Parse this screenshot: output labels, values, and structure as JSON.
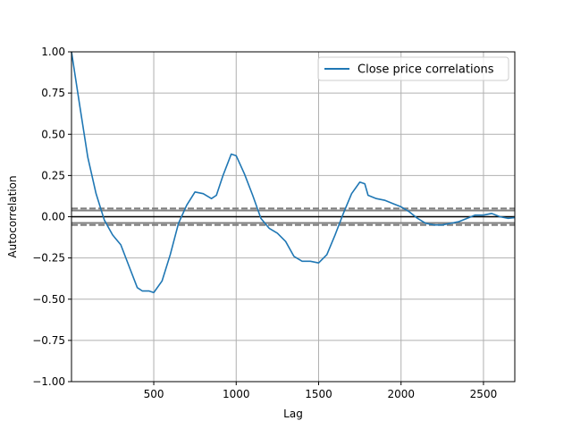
{
  "chart_data": {
    "type": "line",
    "title": "",
    "xlabel": "Lag",
    "ylabel": "Autocorrelation",
    "xlim": [
      1,
      2690
    ],
    "ylim": [
      -1.0,
      1.0
    ],
    "x_ticks": [
      500,
      1000,
      1500,
      2000,
      2500
    ],
    "x_tick_labels": [
      "500",
      "1000",
      "1500",
      "2000",
      "2500"
    ],
    "y_ticks": [
      -1.0,
      -0.75,
      -0.5,
      -0.25,
      0.0,
      0.25,
      0.5,
      0.75,
      1.0
    ],
    "y_tick_labels": [
      "−1.00",
      "−0.75",
      "−0.50",
      "−0.25",
      "0.00",
      "0.25",
      "0.50",
      "0.75",
      "1.00"
    ],
    "grid": true,
    "legend": {
      "position": "top-right",
      "entries": [
        "Close price correlations"
      ]
    },
    "reference_lines": {
      "zero": 0.0,
      "solid_band": [
        0.038,
        -0.038
      ],
      "dashed_band": [
        0.05,
        -0.05
      ]
    },
    "colors": {
      "series": "#1f77b4",
      "reference": "#808080",
      "zero": "#000000",
      "grid": "#b0b0b0"
    },
    "series": [
      {
        "name": "Close price correlations",
        "x": [
          1,
          50,
          100,
          150,
          200,
          250,
          300,
          350,
          400,
          430,
          470,
          500,
          550,
          600,
          650,
          700,
          750,
          800,
          850,
          880,
          920,
          970,
          1000,
          1050,
          1100,
          1150,
          1200,
          1250,
          1300,
          1350,
          1400,
          1450,
          1500,
          1550,
          1600,
          1650,
          1700,
          1750,
          1780,
          1800,
          1850,
          1900,
          1950,
          2000,
          2050,
          2100,
          2150,
          2200,
          2250,
          2300,
          2350,
          2400,
          2450,
          2500,
          2550,
          2600,
          2650,
          2690
        ],
        "values": [
          1.0,
          0.68,
          0.36,
          0.14,
          -0.02,
          -0.11,
          -0.17,
          -0.3,
          -0.43,
          -0.45,
          -0.45,
          -0.46,
          -0.39,
          -0.23,
          -0.04,
          0.07,
          0.15,
          0.14,
          0.11,
          0.13,
          0.25,
          0.38,
          0.37,
          0.26,
          0.13,
          -0.01,
          -0.07,
          -0.1,
          -0.15,
          -0.24,
          -0.27,
          -0.27,
          -0.28,
          -0.23,
          -0.11,
          0.02,
          0.14,
          0.21,
          0.2,
          0.13,
          0.11,
          0.1,
          0.08,
          0.06,
          0.03,
          -0.01,
          -0.04,
          -0.05,
          -0.05,
          -0.04,
          -0.03,
          -0.01,
          0.01,
          0.01,
          0.02,
          0.0,
          -0.01,
          -0.005
        ]
      }
    ]
  }
}
